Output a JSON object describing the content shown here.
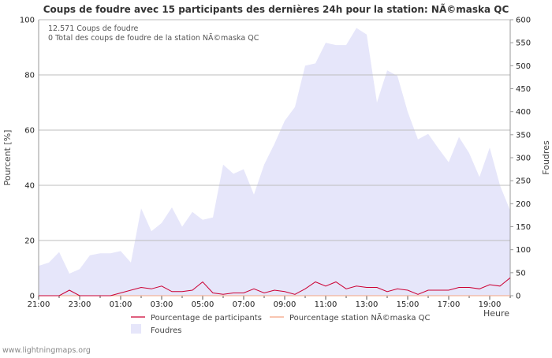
{
  "chart_data": {
    "type": "area",
    "title": "Coups de foudre avec 15 participants des dernières 24h pour la station: NÃ©maska QC",
    "ylabel_left": "Pourcent   [%]",
    "ylabel_right": "Foudres",
    "xlabel": "Heure",
    "ylim_left": [
      0,
      100
    ],
    "ylim_right": [
      0,
      600
    ],
    "yticks_left": [
      0,
      20,
      40,
      60,
      80,
      100
    ],
    "yticks_right": [
      0,
      50,
      100,
      150,
      200,
      250,
      300,
      350,
      400,
      450,
      500,
      550,
      600
    ],
    "xticks": [
      "21:00",
      "23:00",
      "01:00",
      "03:00",
      "05:00",
      "07:00",
      "09:00",
      "11:00",
      "13:00",
      "15:00",
      "17:00",
      "19:00"
    ],
    "x_hours": [
      0,
      0.5,
      1,
      1.5,
      2,
      2.5,
      3,
      3.5,
      4,
      4.5,
      5,
      5.5,
      6,
      6.5,
      7,
      7.5,
      8,
      8.5,
      9,
      9.5,
      10,
      10.5,
      11,
      11.5,
      12,
      12.5,
      13,
      13.5,
      14,
      14.5,
      15,
      15.5,
      16,
      16.5,
      17,
      17.5,
      18,
      18.5,
      19,
      19.5,
      20,
      20.5,
      21,
      21.5,
      22,
      22.5,
      23
    ],
    "annotations": [
      "12.571  Coups de foudre",
      "0 Total des coups de foudre de la station NÃ©maska QC"
    ],
    "series": [
      {
        "name": "Foudres",
        "axis": "right",
        "color": "#e6e6fa",
        "values": [
          65,
          72,
          95,
          48,
          58,
          88,
          92,
          92,
          97,
          72,
          190,
          140,
          158,
          192,
          150,
          182,
          165,
          170,
          285,
          265,
          275,
          220,
          285,
          330,
          380,
          410,
          500,
          505,
          550,
          545,
          545,
          582,
          568,
          420,
          490,
          478,
          400,
          340,
          352,
          320,
          290,
          345,
          310,
          258,
          322,
          240,
          185
        ]
      },
      {
        "name": "Pourcentage de participants",
        "axis": "left",
        "color": "#cc0033",
        "values": [
          0,
          0,
          0,
          2,
          0,
          0,
          0,
          0,
          1,
          2,
          3,
          2.5,
          3.5,
          1.5,
          1.5,
          2,
          5,
          1,
          0.5,
          1,
          1,
          2.5,
          1,
          2,
          1.5,
          0.5,
          2.5,
          5,
          3.5,
          5,
          2.5,
          3.5,
          3,
          3,
          1.5,
          2.5,
          2,
          0.5,
          2,
          2,
          2,
          3,
          3,
          2.5,
          4,
          3.5,
          6.5
        ]
      },
      {
        "name": "Pourcentage station NÃ©maska QC",
        "axis": "left",
        "color": "#f4a582",
        "values": [
          0,
          0,
          0,
          0,
          0,
          0,
          0,
          0,
          0,
          0,
          0,
          0,
          0,
          0,
          0,
          0,
          0,
          0,
          0,
          0,
          0,
          0,
          0,
          0,
          0,
          0,
          0,
          0,
          0,
          0,
          0,
          0,
          0,
          0,
          0,
          0,
          0,
          0,
          0,
          0,
          0,
          0,
          0,
          0,
          0,
          0,
          0
        ]
      }
    ],
    "legend_position": "bottom"
  },
  "footer": {
    "source": "www.lightningmaps.org"
  }
}
